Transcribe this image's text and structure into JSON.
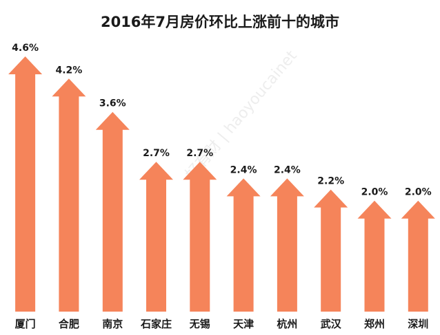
{
  "chart_data": {
    "type": "bar",
    "title": "2016年7月房价环比上涨前十的城市",
    "categories": [
      "厦门",
      "合肥",
      "南京",
      "石家庄",
      "无锡",
      "天津",
      "杭州",
      "武汉",
      "郑州",
      "深圳"
    ],
    "values": [
      4.6,
      4.2,
      3.6,
      2.7,
      2.7,
      2.4,
      2.4,
      2.2,
      2.0,
      2.0
    ],
    "value_labels": [
      "4.6%",
      "4.2%",
      "3.6%",
      "2.7%",
      "2.7%",
      "2.4%",
      "2.4%",
      "2.2%",
      "2.0%",
      "2.0%"
    ],
    "ylim": [
      0,
      4.6
    ],
    "grid": false,
    "bar_shape": "upward arrow",
    "bar_color": "#F5845A"
  },
  "watermark": "好有财 | haoyoucainet"
}
